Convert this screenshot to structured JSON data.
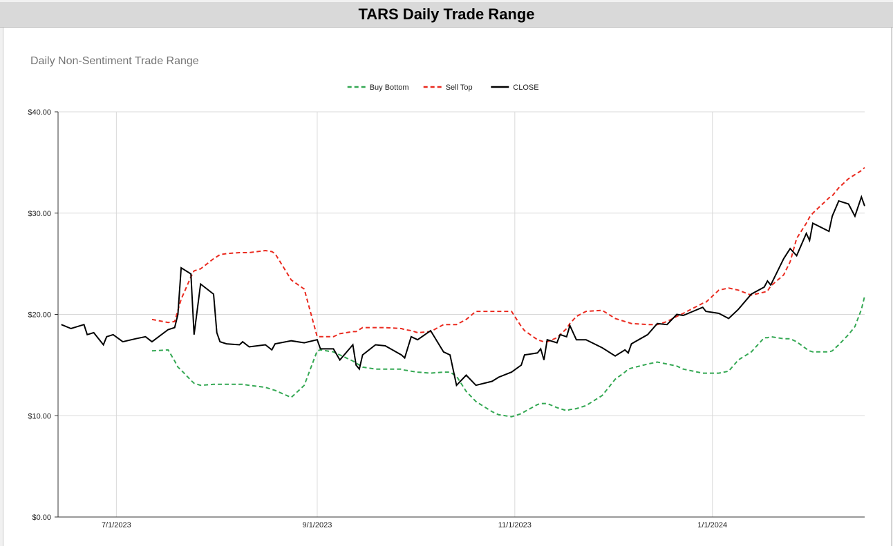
{
  "sheet_title": "TARS Daily Trade Range",
  "chart_data": {
    "type": "line",
    "title": "Daily Non-Sentiment Trade Range",
    "x": [
      "2023-06-14",
      "2023-06-17",
      "2023-06-21",
      "2023-06-22",
      "2023-06-24",
      "2023-06-27",
      "2023-06-28",
      "2023-06-30",
      "2023-07-03",
      "2023-07-07",
      "2023-07-10",
      "2023-07-12",
      "2023-07-17",
      "2023-07-19",
      "2023-07-20",
      "2023-07-21",
      "2023-07-24",
      "2023-07-25",
      "2023-07-27",
      "2023-07-31",
      "2023-08-01",
      "2023-08-02",
      "2023-08-04",
      "2023-08-08",
      "2023-08-09",
      "2023-08-11",
      "2023-08-16",
      "2023-08-18",
      "2023-08-19",
      "2023-08-24",
      "2023-08-28",
      "2023-09-01",
      "2023-09-02",
      "2023-09-06",
      "2023-09-08",
      "2023-09-12",
      "2023-09-13",
      "2023-09-14",
      "2023-09-15",
      "2023-09-19",
      "2023-09-22",
      "2023-09-27",
      "2023-09-28",
      "2023-09-30",
      "2023-10-02",
      "2023-10-06",
      "2023-10-10",
      "2023-10-12",
      "2023-10-14",
      "2023-10-17",
      "2023-10-20",
      "2023-10-25",
      "2023-10-27",
      "2023-10-31",
      "2023-11-03",
      "2023-11-04",
      "2023-11-08",
      "2023-11-09",
      "2023-11-10",
      "2023-11-11",
      "2023-11-14",
      "2023-11-15",
      "2023-11-17",
      "2023-11-18",
      "2023-11-20",
      "2023-11-23",
      "2023-11-28",
      "2023-12-02",
      "2023-12-05",
      "2023-12-06",
      "2023-12-07",
      "2023-12-12",
      "2023-12-15",
      "2023-12-18",
      "2023-12-21",
      "2023-12-23",
      "2023-12-29",
      "2023-12-30",
      "2024-01-03",
      "2024-01-06",
      "2024-01-09",
      "2024-01-13",
      "2024-01-17",
      "2024-01-18",
      "2024-01-19",
      "2024-01-23",
      "2024-01-25",
      "2024-01-27",
      "2024-01-30",
      "2024-01-31",
      "2024-02-01",
      "2024-02-06",
      "2024-02-07",
      "2024-02-09",
      "2024-02-12",
      "2024-02-14",
      "2024-02-16",
      "2024-02-17"
    ],
    "series": [
      {
        "name": "Buy Bottom",
        "color": "#34a853",
        "line_style": "dashed",
        "values": [
          null,
          null,
          null,
          null,
          null,
          null,
          null,
          null,
          null,
          null,
          null,
          16.4,
          16.5,
          15.4,
          14.8,
          14.5,
          13.5,
          13.2,
          13.0,
          13.1,
          13.1,
          13.1,
          13.1,
          13.1,
          13.1,
          13.0,
          12.8,
          12.6,
          12.5,
          11.8,
          13.0,
          16.4,
          16.5,
          16.3,
          16.0,
          15.4,
          15.2,
          15.0,
          14.8,
          14.6,
          14.6,
          14.6,
          14.5,
          14.4,
          14.3,
          14.2,
          14.3,
          14.3,
          13.9,
          12.4,
          11.4,
          10.4,
          10.1,
          9.9,
          10.2,
          10.4,
          11.1,
          11.2,
          11.2,
          11.2,
          10.8,
          10.7,
          10.5,
          10.6,
          10.7,
          11.0,
          12.0,
          13.6,
          14.3,
          14.6,
          14.7,
          15.1,
          15.3,
          15.1,
          14.9,
          14.6,
          14.2,
          14.2,
          14.2,
          14.4,
          15.5,
          16.3,
          17.7,
          17.7,
          17.8,
          17.6,
          17.6,
          17.3,
          16.6,
          16.4,
          16.3,
          16.3,
          16.4,
          17.0,
          18.0,
          18.8,
          20.5,
          21.8
        ]
      },
      {
        "name": "Sell Top",
        "color": "#ea2a1f",
        "line_style": "dashed",
        "values": [
          null,
          null,
          null,
          null,
          null,
          null,
          null,
          null,
          null,
          null,
          null,
          19.5,
          19.2,
          19.3,
          20.4,
          21.5,
          23.7,
          24.3,
          24.5,
          25.5,
          25.7,
          25.9,
          26.0,
          26.1,
          26.1,
          26.1,
          26.3,
          26.2,
          26.0,
          23.4,
          22.5,
          17.8,
          17.8,
          17.8,
          18.1,
          18.3,
          18.3,
          18.5,
          18.7,
          18.7,
          18.7,
          18.6,
          18.5,
          18.4,
          18.2,
          18.3,
          19.0,
          19.0,
          19.0,
          19.5,
          20.3,
          20.3,
          20.3,
          20.3,
          18.8,
          18.4,
          17.5,
          17.4,
          17.3,
          17.3,
          17.7,
          18.0,
          18.6,
          19.1,
          19.8,
          20.3,
          20.4,
          19.6,
          19.3,
          19.2,
          19.1,
          19.0,
          19.0,
          19.3,
          19.8,
          20.1,
          21.1,
          21.2,
          22.4,
          22.6,
          22.4,
          21.9,
          22.2,
          22.3,
          22.8,
          23.9,
          25.2,
          27.5,
          29.0,
          29.6,
          30.0,
          31.5,
          31.7,
          32.5,
          33.4,
          33.8,
          34.2,
          34.5
        ]
      },
      {
        "name": "CLOSE",
        "color": "#000000",
        "line_style": "solid",
        "values": [
          19.0,
          18.6,
          19.0,
          18.0,
          18.2,
          17.0,
          17.8,
          18.0,
          17.3,
          17.6,
          17.8,
          17.3,
          18.5,
          18.7,
          20.0,
          24.6,
          24.0,
          18.0,
          23.0,
          22.0,
          18.2,
          17.3,
          17.1,
          17.0,
          17.3,
          16.8,
          17.0,
          16.5,
          17.1,
          17.4,
          17.2,
          17.5,
          16.6,
          16.6,
          15.5,
          17.0,
          15.0,
          14.6,
          16.0,
          17.0,
          16.9,
          16.0,
          15.7,
          17.8,
          17.5,
          18.4,
          16.3,
          16.0,
          13.0,
          14.0,
          13.0,
          13.4,
          13.8,
          14.3,
          15.0,
          16.0,
          16.2,
          16.6,
          15.5,
          17.5,
          17.2,
          18.0,
          17.8,
          18.9,
          17.5,
          17.5,
          16.7,
          15.9,
          16.5,
          16.2,
          17.1,
          18.0,
          19.1,
          19.0,
          20.0,
          19.9,
          20.7,
          20.3,
          20.1,
          19.6,
          20.5,
          22.0,
          22.7,
          23.3,
          22.9,
          25.5,
          26.5,
          25.8,
          28.0,
          27.3,
          29.0,
          28.2,
          29.7,
          31.2,
          30.9,
          29.7,
          31.6,
          30.7
        ]
      }
    ],
    "xlim": [
      "2023-06-13",
      "2024-02-17"
    ],
    "xticks": [
      {
        "value": "2023-07-01",
        "label": "7/1/2023"
      },
      {
        "value": "2023-09-01",
        "label": "9/1/2023"
      },
      {
        "value": "2023-11-01",
        "label": "11/1/2023"
      },
      {
        "value": "2024-01-01",
        "label": "1/1/2024"
      }
    ],
    "ylim": [
      0,
      40
    ],
    "yticks": [
      {
        "value": 0,
        "label": "$0.00"
      },
      {
        "value": 10,
        "label": "$10.00"
      },
      {
        "value": 20,
        "label": "$20.00"
      },
      {
        "value": 30,
        "label": "$30.00"
      },
      {
        "value": 40,
        "label": "$40.00"
      }
    ],
    "grid": true,
    "legend_position": "top"
  }
}
